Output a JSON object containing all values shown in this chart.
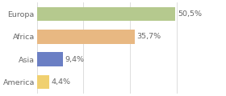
{
  "categories": [
    "Europa",
    "Africa",
    "Asia",
    "America"
  ],
  "values": [
    50.5,
    35.7,
    9.4,
    4.4
  ],
  "labels": [
    "50,5%",
    "35,7%",
    "9,4%",
    "4,4%"
  ],
  "bar_colors": [
    "#b5c98e",
    "#e8b882",
    "#6b7fc4",
    "#f0d070"
  ],
  "background_color": "#ffffff",
  "xlim": [
    0,
    68
  ],
  "bar_height": 0.62,
  "label_fontsize": 6.8,
  "category_fontsize": 6.8,
  "label_color": "#666666",
  "grid_color": "#dddddd",
  "grid_positions": [
    0,
    17,
    34,
    51,
    68
  ]
}
